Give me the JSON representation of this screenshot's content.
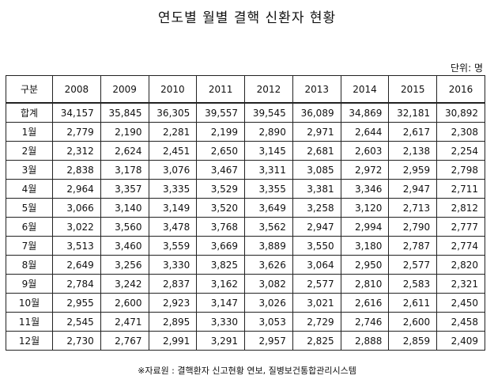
{
  "title": "연도별 월별 결핵 신환자 현황",
  "unit": "단위: 명",
  "table": {
    "corner": "구분",
    "years": [
      "2008",
      "2009",
      "2010",
      "2011",
      "2012",
      "2013",
      "2014",
      "2015",
      "2016"
    ],
    "rows": [
      {
        "label": "합계",
        "values": [
          "34,157",
          "35,845",
          "36,305",
          "39,557",
          "39,545",
          "36,089",
          "34,869",
          "32,181",
          "30,892"
        ]
      },
      {
        "label": "1월",
        "values": [
          "2,779",
          "2,190",
          "2,281",
          "2,199",
          "2,890",
          "2,971",
          "2,644",
          "2,617",
          "2,308"
        ]
      },
      {
        "label": "2월",
        "values": [
          "2,312",
          "2,624",
          "2,451",
          "2,650",
          "3,145",
          "2,681",
          "2,603",
          "2,138",
          "2,254"
        ]
      },
      {
        "label": "3월",
        "values": [
          "2,838",
          "3,178",
          "3,076",
          "3,467",
          "3,311",
          "3,085",
          "2,972",
          "2,959",
          "2,798"
        ]
      },
      {
        "label": "4월",
        "values": [
          "2,964",
          "3,357",
          "3,335",
          "3,529",
          "3,355",
          "3,381",
          "3,346",
          "2,947",
          "2,711"
        ]
      },
      {
        "label": "5월",
        "values": [
          "3,066",
          "3,140",
          "3,149",
          "3,520",
          "3,649",
          "3,258",
          "3,120",
          "2,713",
          "2,812"
        ]
      },
      {
        "label": "6월",
        "values": [
          "3,022",
          "3,560",
          "3,478",
          "3,768",
          "3,562",
          "2,947",
          "2,994",
          "2,790",
          "2,777"
        ]
      },
      {
        "label": "7월",
        "values": [
          "3,513",
          "3,460",
          "3,559",
          "3,669",
          "3,889",
          "3,550",
          "3,180",
          "2,787",
          "2,774"
        ]
      },
      {
        "label": "8월",
        "values": [
          "2,649",
          "3,256",
          "3,330",
          "3,825",
          "3,626",
          "3,064",
          "2,950",
          "2,577",
          "2,820"
        ]
      },
      {
        "label": "9월",
        "values": [
          "2,784",
          "3,242",
          "2,837",
          "3,162",
          "3,082",
          "2,577",
          "2,810",
          "2,583",
          "2,321"
        ]
      },
      {
        "label": "10월",
        "values": [
          "2,955",
          "2,600",
          "2,923",
          "3,147",
          "3,026",
          "3,021",
          "2,616",
          "2,611",
          "2,450"
        ]
      },
      {
        "label": "11월",
        "values": [
          "2,545",
          "2,471",
          "2,895",
          "3,330",
          "3,053",
          "2,729",
          "2,746",
          "2,600",
          "2,458"
        ]
      },
      {
        "label": "12월",
        "values": [
          "2,730",
          "2,767",
          "2,991",
          "3,291",
          "2,957",
          "2,825",
          "2,888",
          "2,859",
          "2,409"
        ]
      }
    ]
  },
  "source": "※자료원 : 결핵환자 신고현황 연보, 질병보건통합관리시스템"
}
